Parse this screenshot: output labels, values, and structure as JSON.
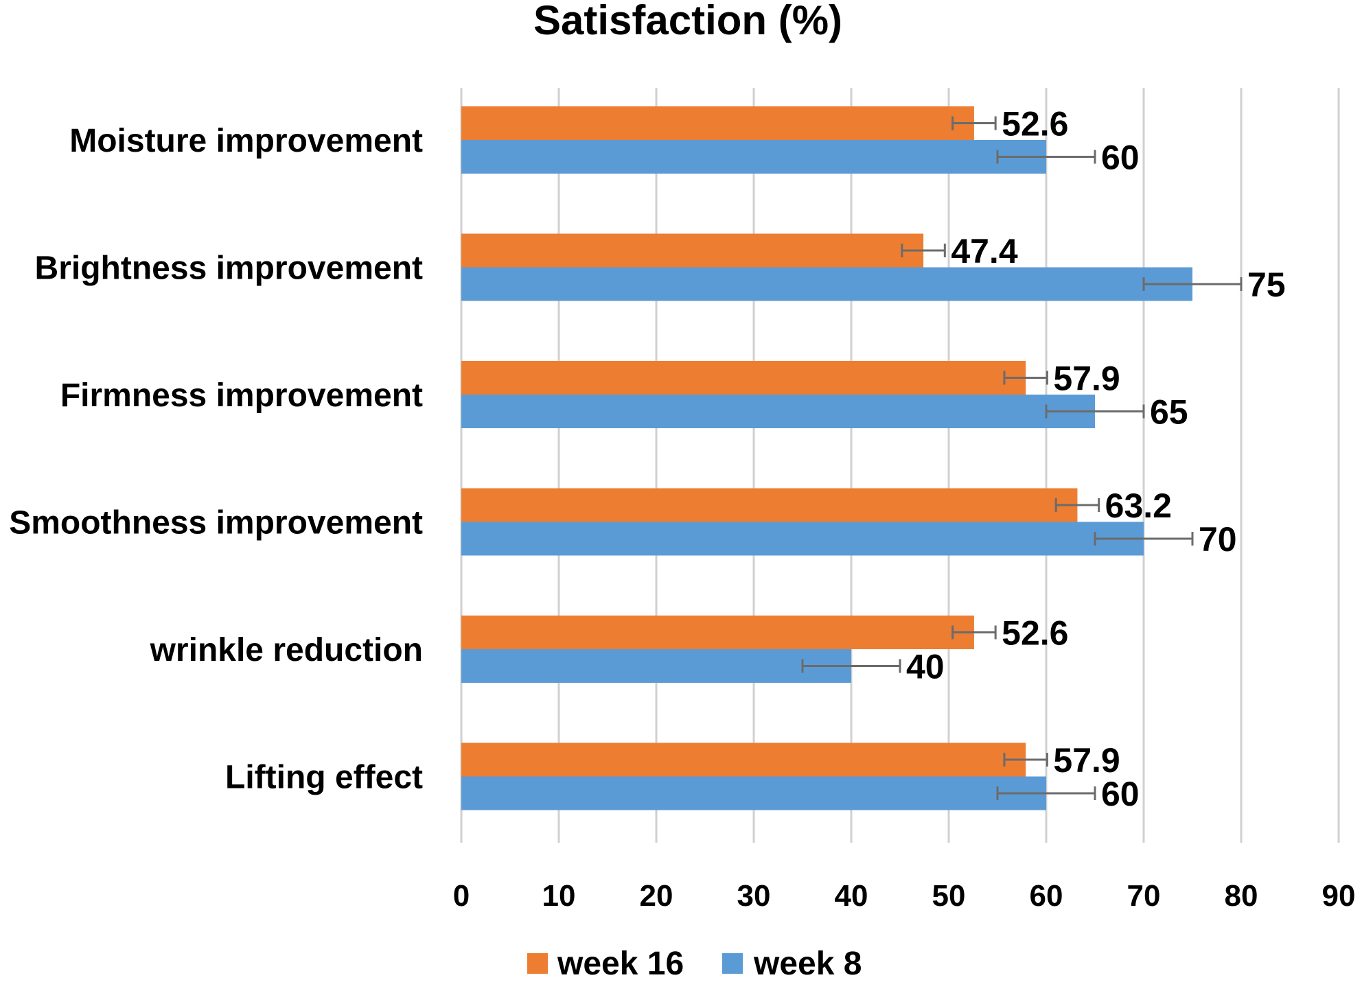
{
  "chart_data": {
    "type": "bar",
    "orientation": "horizontal",
    "title": "Satisfaction (%)",
    "categories": [
      "Moisture improvement",
      "Brightness improvement",
      "Firmness improvement",
      "Smoothness improvement",
      "wrinkle reduction",
      "Lifting effect"
    ],
    "series": [
      {
        "name": "week 16",
        "color": "#ED7D31",
        "values": [
          52.6,
          47.4,
          57.9,
          63.2,
          52.6,
          57.9
        ],
        "value_labels": [
          "52.6",
          "47.4",
          "57.9",
          "63.2",
          "52.6",
          "57.9"
        ],
        "error": [
          2.2,
          2.2,
          2.2,
          2.2,
          2.2,
          2.2
        ]
      },
      {
        "name": "week 8",
        "color": "#5B9BD5",
        "values": [
          60,
          75,
          65,
          70,
          40,
          60
        ],
        "value_labels": [
          "60",
          "75",
          "65",
          "70",
          "40",
          "60"
        ],
        "error": [
          5,
          5,
          5,
          5,
          5,
          5
        ]
      }
    ],
    "xlim": [
      0,
      90
    ],
    "xticks": [
      0,
      10,
      20,
      30,
      40,
      50,
      60,
      70,
      80,
      90
    ],
    "xtick_labels": [
      "0",
      "10",
      "20",
      "30",
      "40",
      "50",
      "60",
      "70",
      "80",
      "90"
    ],
    "grid": "vertical",
    "legend_position": "bottom"
  }
}
